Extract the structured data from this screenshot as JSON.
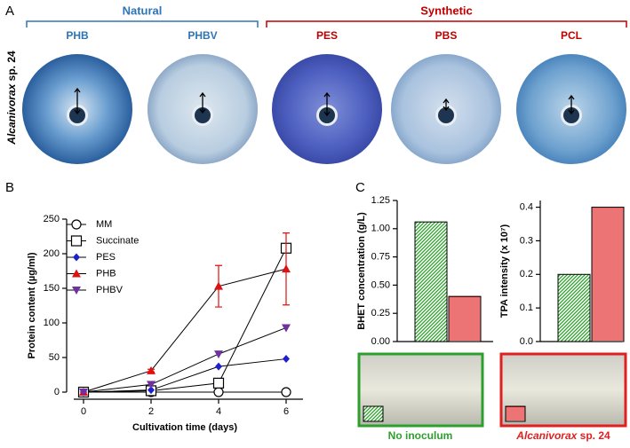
{
  "panel_labels": {
    "a": "A",
    "b": "B",
    "c": "C"
  },
  "panel_a": {
    "side_label_species": "Alcanivorax",
    "side_label_strain": "sp. 24",
    "groups": [
      {
        "label": "Natural",
        "color": "#2e75b6"
      },
      {
        "label": "Synthetic",
        "color": "#c00000"
      }
    ],
    "samples": [
      {
        "label": "PHB",
        "color": "#2e75b6"
      },
      {
        "label": "PHBV",
        "color": "#2e75b6"
      },
      {
        "label": "PES",
        "color": "#c00000"
      },
      {
        "label": "PBS",
        "color": "#c00000"
      },
      {
        "label": "PCL",
        "color": "#c00000"
      }
    ]
  },
  "panel_c_photos": {
    "left_caption": "No inoculum",
    "left_color": "#2ca02c",
    "right_species": "Alcanivorax",
    "right_strain": "sp. 24",
    "right_color": "#e02020"
  },
  "chart_data": [
    {
      "type": "line",
      "x_label": "Cultivation time (days)",
      "y_label": "Protein content (µg/ml)",
      "x": [
        0,
        2,
        4,
        6
      ],
      "xlim": [
        -0.5,
        6.5
      ],
      "xticks": [
        0,
        2,
        4,
        6
      ],
      "ylim": [
        0,
        250
      ],
      "yticks": [
        0,
        50,
        100,
        150,
        200,
        250
      ],
      "series": [
        {
          "name": "MM",
          "color": "#000000",
          "marker": "circle-open",
          "values": [
            0,
            0,
            0,
            0
          ]
        },
        {
          "name": "Succinate",
          "color": "#000000",
          "marker": "square-open",
          "values": [
            0,
            2,
            13,
            208
          ]
        },
        {
          "name": "PES",
          "color": "#1f1fd0",
          "marker": "diamond",
          "values": [
            0,
            3,
            37,
            48
          ]
        },
        {
          "name": "PHB",
          "color": "#e01010",
          "marker": "triangle-up",
          "values": [
            0,
            31,
            153,
            178
          ],
          "errors": [
            0,
            2,
            30,
            52
          ]
        },
        {
          "name": "PHBV",
          "color": "#7030a0",
          "marker": "triangle-down",
          "values": [
            0,
            11,
            55,
            93
          ]
        }
      ]
    },
    {
      "type": "bar",
      "y_label": "BHET concentration (g/L)",
      "categories": [
        null,
        null
      ],
      "values": [
        1.06,
        0.4
      ],
      "colors": [
        "#2ca02c",
        "#e02020"
      ],
      "hatches": [
        "diagonal",
        "horizontal"
      ],
      "ylim": [
        0,
        1.25
      ],
      "yticks": [
        {
          "value": 0,
          "label": "0.00"
        },
        {
          "value": 0.25,
          "label": "0.25"
        },
        {
          "value": 0.5,
          "label": "0.50"
        },
        {
          "value": 0.75,
          "label": "0.75"
        },
        {
          "value": 1,
          "label": "1.00"
        },
        {
          "value": 1.25,
          "label": "1.25"
        }
      ]
    },
    {
      "type": "bar",
      "y_label": "TPA intensity (x 10⁷)",
      "categories": [
        null,
        null
      ],
      "values": [
        0.2,
        0.4
      ],
      "colors": [
        "#2ca02c",
        "#e02020"
      ],
      "hatches": [
        "diagonal",
        "horizontal"
      ],
      "ylim": [
        0,
        0.42
      ],
      "yticks": [
        {
          "value": 0,
          "label": "0.0"
        },
        {
          "value": 0.1,
          "label": "0.1"
        },
        {
          "value": 0.2,
          "label": "0.2"
        },
        {
          "value": 0.3,
          "label": "0.3"
        },
        {
          "value": 0.4,
          "label": "0.4"
        }
      ]
    }
  ]
}
